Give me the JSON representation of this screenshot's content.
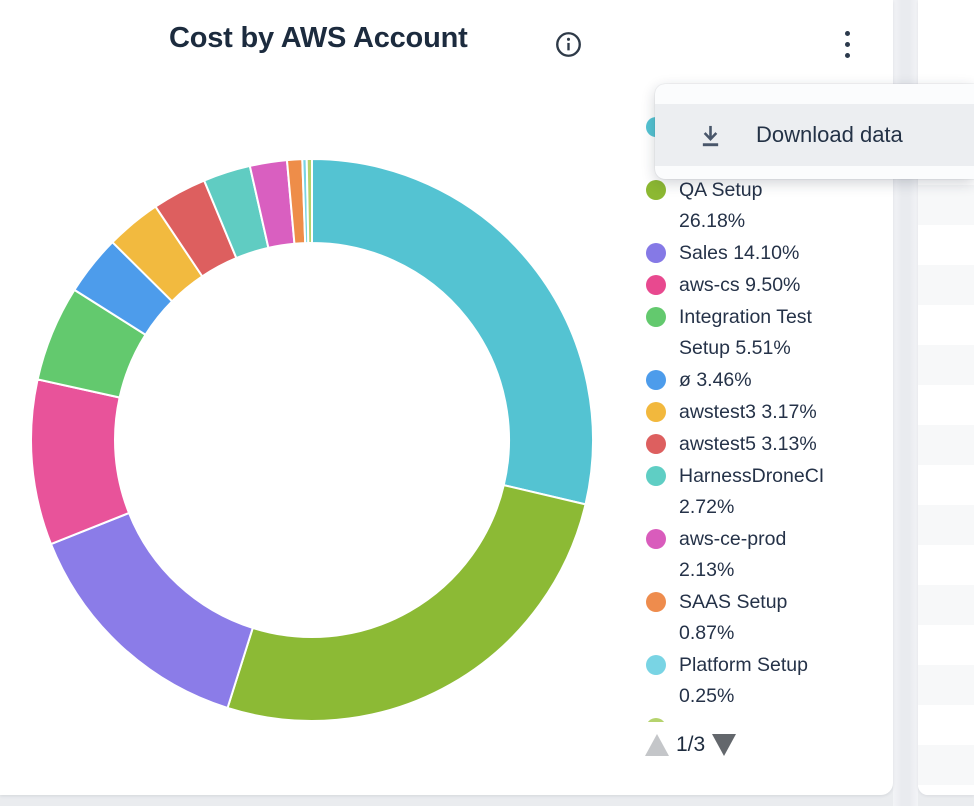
{
  "card": {
    "title": "Cost by AWS Account"
  },
  "menu": {
    "items": [
      {
        "label": "Download data",
        "icon": "download-icon"
      }
    ]
  },
  "legend": {
    "items": [
      {
        "color": "#54c3d2",
        "lines": [
          "",
          ""
        ]
      },
      {
        "color": "#8cb832",
        "lines": [
          "QA Setup",
          "26.18%"
        ]
      },
      {
        "color": "#8579e6",
        "lines": [
          "Sales 14.10%"
        ]
      },
      {
        "color": "#e8498f",
        "lines": [
          "aws-cs 9.50%"
        ]
      },
      {
        "color": "#63c96e",
        "lines": [
          "Integration Test",
          "Setup 5.51%"
        ]
      },
      {
        "color": "#4d9ceb",
        "lines": [
          "ø 3.46%"
        ]
      },
      {
        "color": "#f2b83d",
        "lines": [
          "awstest3 3.17%"
        ]
      },
      {
        "color": "#dd5f5f",
        "lines": [
          "awstest5 3.13%"
        ]
      },
      {
        "color": "#5fcec4",
        "lines": [
          "HarnessDroneCI",
          "2.72%"
        ]
      },
      {
        "color": "#d95cbc",
        "lines": [
          "aws-ce-prod",
          "2.13%"
        ]
      },
      {
        "color": "#ee8c4d",
        "lines": [
          "SAAS Setup",
          "0.87%"
        ]
      },
      {
        "color": "#79d4e4",
        "lines": [
          "Platform Setup",
          "0.25%"
        ]
      },
      {
        "color": "#b5d36d",
        "lines": [
          ""
        ]
      }
    ],
    "pagination": {
      "label": "1/3",
      "prev_enabled": false,
      "next_enabled": true
    }
  },
  "chart_data": {
    "type": "pie",
    "variant": "donut",
    "title": "Cost by AWS Account",
    "start_angle_deg": 0,
    "direction": "clockwise",
    "inner_radius_ratio": 0.7,
    "legend_position": "right",
    "segments": [
      {
        "label": "",
        "value": 28.68,
        "color": "#54c3d2"
      },
      {
        "label": "QA Setup",
        "value": 26.18,
        "color": "#8cba35"
      },
      {
        "label": "Sales",
        "value": 14.1,
        "color": "#8b7ce8"
      },
      {
        "label": "aws-cs",
        "value": 9.5,
        "color": "#e8539a"
      },
      {
        "label": "Integration Test Setup",
        "value": 5.51,
        "color": "#63c96e"
      },
      {
        "label": "ø",
        "value": 3.46,
        "color": "#4d9ceb"
      },
      {
        "label": "awstest3",
        "value": 3.17,
        "color": "#f2ba3f"
      },
      {
        "label": "awstest5",
        "value": 3.13,
        "color": "#dd5f5f"
      },
      {
        "label": "HarnessDroneCI",
        "value": 2.72,
        "color": "#60ccc2"
      },
      {
        "label": "aws-ce-prod",
        "value": 2.13,
        "color": "#d95fc0"
      },
      {
        "label": "SAAS Setup",
        "value": 0.87,
        "color": "#ee8d49"
      },
      {
        "label": "Platform Setup",
        "value": 0.25,
        "color": "#79d4e4"
      },
      {
        "label": "",
        "value": 0.3,
        "color": "#b5d36d"
      }
    ]
  }
}
